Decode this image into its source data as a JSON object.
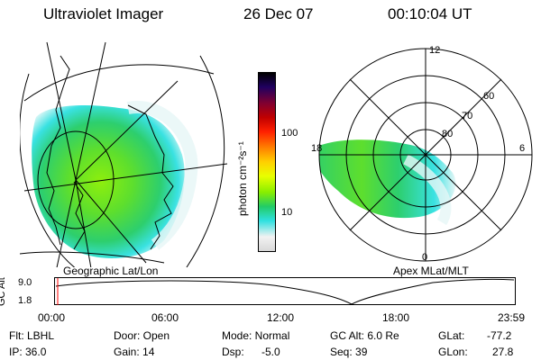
{
  "header": {
    "instrument": "Ultraviolet Imager",
    "date": "26 Dec 07",
    "time": "00:10:04 UT"
  },
  "left_panel": {
    "caption": "Geographic Lat/Lon"
  },
  "right_panel": {
    "caption": "Apex MLat/MLT",
    "mlt_labels": [
      "12",
      "18",
      "6",
      "0"
    ],
    "mlat_labels": [
      "60",
      "70",
      "80"
    ]
  },
  "colorbar": {
    "units": "photon cm⁻²s⁻¹",
    "ticks": [
      "100",
      "10"
    ],
    "colors": [
      "#d8d8d8",
      "#f2f2f2",
      "#2fe0e0",
      "#22cc66",
      "#88ee00",
      "#e8ff00",
      "#ffd000",
      "#ff8000",
      "#ff2000",
      "#c00000",
      "#800030",
      "#200060",
      "#000000"
    ]
  },
  "timeline": {
    "ylabel": "GC Alt",
    "yticks": [
      "9.0",
      "1.8"
    ],
    "xticks": [
      "00:00",
      "06:00",
      "12:00",
      "18:00",
      "23:59"
    ],
    "marker_color": "#ff0000"
  },
  "info": {
    "filter": "Flt: LBHL",
    "ip": "IP: 36.0",
    "door": "Door: Open",
    "gain": "Gain: 14",
    "mode": "Mode: Normal",
    "dsp": "Dsp:",
    "dsp_value": "-5.0",
    "gc_alt": "GC Alt: 6.0 Re",
    "seq": "Seq: 39",
    "glat": "GLat:",
    "glat_value": "-77.2",
    "glon": "GLon:",
    "glon_value": "27.8"
  }
}
